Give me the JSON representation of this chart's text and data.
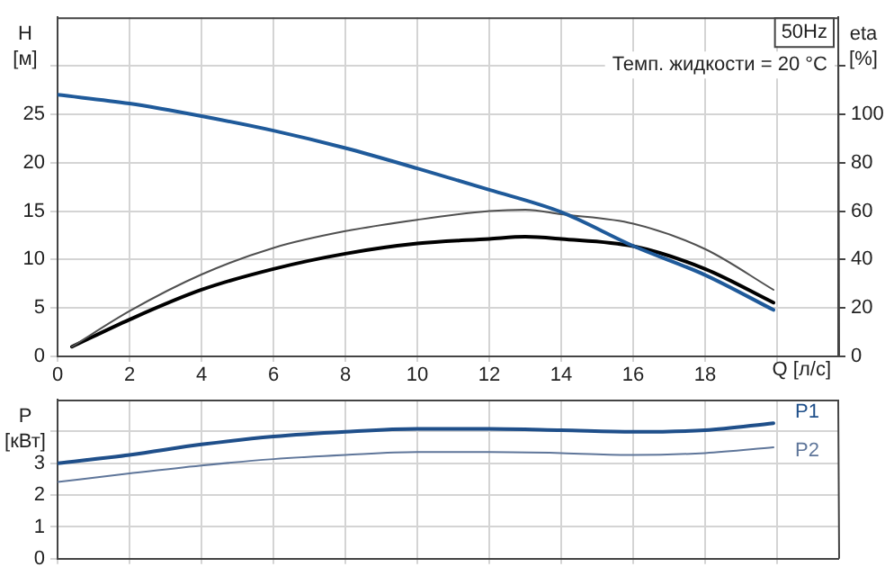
{
  "chart_data": [
    {
      "type": "line",
      "xlabel": "Q [л/с]",
      "ylabel": "H [м]",
      "y2label": "eta [%]",
      "annotations": [
        "50Hz",
        "Темп. жидкости = 20 °C"
      ],
      "xlim": [
        0,
        21.7
      ],
      "xticks": [
        0,
        2,
        4,
        6,
        8,
        10,
        12,
        14,
        16,
        18,
        {
          "value": 20,
          "label": null
        }
      ],
      "ylim": [
        0,
        35
      ],
      "yticks": [
        0,
        5,
        10,
        15,
        20,
        25,
        {
          "value": 30,
          "label": null
        }
      ],
      "y2lim": [
        0,
        140
      ],
      "y2ticks": [
        0,
        20,
        40,
        60,
        80,
        100,
        {
          "value": 120,
          "label": null
        }
      ],
      "grid": true,
      "legend": false,
      "marker": "none",
      "line_style": "solid",
      "series": [
        {
          "color": "#1f5a9a",
          "x": [
            0,
            2,
            4,
            6,
            8,
            10,
            12,
            14,
            16,
            18,
            19.9
          ],
          "values": [
            27,
            26.1,
            24.8,
            23.3,
            21.5,
            19.4,
            17.2,
            14.9,
            11.4,
            8.4,
            4.8
          ]
        },
        {
          "color": "#505050",
          "axis": "y2",
          "x": [
            0.4,
            2,
            4,
            6,
            8,
            10,
            12,
            13,
            14,
            16,
            18,
            19.9
          ],
          "values": [
            4,
            18.7,
            33.8,
            44.8,
            51.7,
            56.4,
            60,
            60.6,
            58.7,
            54.8,
            44.3,
            27.5
          ]
        },
        {
          "color": "#000000",
          "axis": "y2",
          "x": [
            0.4,
            2,
            4,
            6,
            8,
            10,
            12,
            13,
            14,
            16,
            18,
            19.9
          ],
          "values": [
            4,
            15.2,
            27.5,
            36.1,
            42.4,
            46.6,
            48.5,
            49.4,
            48.5,
            45.5,
            36.1,
            22.2
          ]
        }
      ]
    },
    {
      "type": "line",
      "ylabel": "P [кВт]",
      "tick_labels": "y",
      "xlim": [
        0,
        21.7
      ],
      "xticks": [
        0,
        2,
        4,
        6,
        8,
        10,
        12,
        14,
        16,
        18,
        20
      ],
      "ylim": [
        0,
        5
      ],
      "yticks": [
        0,
        1,
        2,
        3,
        {
          "value": 4,
          "label": null
        }
      ],
      "grid": true,
      "legend": false,
      "marker": "none",
      "line_style": "solid",
      "series": [
        {
          "name": "P1",
          "color": "#1f4f8a",
          "x": [
            0,
            2,
            4,
            6,
            8,
            10,
            12,
            14,
            16,
            18,
            19.9
          ],
          "values": [
            3.0,
            3.26,
            3.59,
            3.84,
            3.99,
            4.08,
            4.08,
            4.04,
            3.99,
            4.04,
            4.26
          ]
        },
        {
          "name": "P2",
          "color": "#5f769a",
          "x": [
            0,
            2,
            4,
            6,
            8,
            10,
            12,
            14,
            16,
            18,
            19.9
          ],
          "values": [
            2.41,
            2.68,
            2.93,
            3.13,
            3.26,
            3.35,
            3.35,
            3.32,
            3.26,
            3.32,
            3.5
          ]
        }
      ]
    }
  ]
}
